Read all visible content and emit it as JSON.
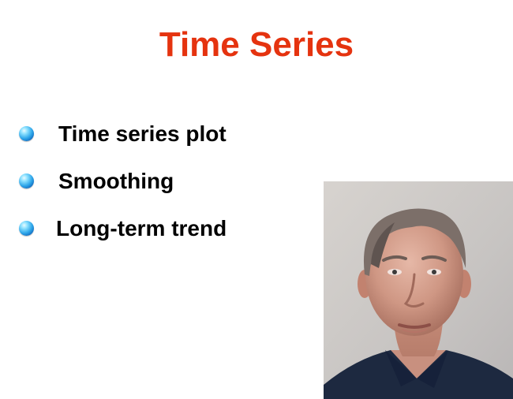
{
  "slide": {
    "title": "Time Series",
    "bullets": [
      {
        "label": "Time series plot"
      },
      {
        "label": "Smoothing"
      },
      {
        "label": "Long-term trend"
      }
    ],
    "bullet_icon": "blue-sphere-bullet-icon",
    "photo": {
      "icon": "presenter-portrait"
    },
    "colors": {
      "title": "#e5330f",
      "text": "#000000",
      "background": "#ffffff",
      "bullet": "#2fa7ea"
    }
  }
}
